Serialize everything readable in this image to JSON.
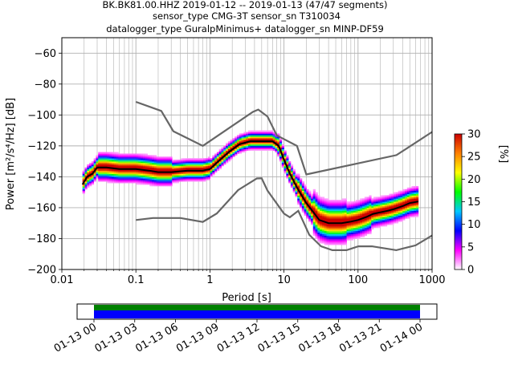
{
  "header": {
    "line1": "BK.BK81.00.HHZ   2019-01-12 -- 2019-01-13  (47/47 segments)",
    "line2": "sensor_type CMG-3T sensor_sn T310034",
    "line3": "datalogger_type GuralpMinimus+ datalogger_sn MINP-DF59"
  },
  "chart_data": [
    {
      "type": "heatmap",
      "xlabel": "Period [s]",
      "ylabel": "Power [m²/s⁴/Hz] [dB]",
      "xscale": "log",
      "xlim": [
        0.01,
        1000
      ],
      "ylim": [
        -200,
        -50
      ],
      "x_ticks": [
        0.01,
        0.1,
        1,
        10,
        100,
        1000
      ],
      "x_tick_labels": [
        "0.01",
        "0.1",
        "1",
        "10",
        "100",
        "1000"
      ],
      "y_ticks": [
        -200,
        -180,
        -160,
        -140,
        -120,
        -100,
        -80,
        -60
      ],
      "y_tick_labels": [
        "−200",
        "−180",
        "−160",
        "−140",
        "−120",
        "−100",
        "−80",
        "−60"
      ],
      "grid": true,
      "noise_models": [
        {
          "x": [
            0.1,
            0.22,
            0.32,
            0.8,
            3.8,
            4.5,
            6,
            8,
            15,
            20,
            330,
            1000
          ],
          "y": [
            -91.5,
            -97.4,
            -110.5,
            -120,
            -98,
            -96.5,
            -101,
            -113.2,
            -120,
            -138.5,
            -126,
            -111
          ]
        },
        {
          "x": [
            0.1,
            0.17,
            0.4,
            0.8,
            1.24,
            2.4,
            4.3,
            5,
            6,
            10,
            12,
            15.6,
            21.9,
            31.6,
            45,
            70,
            101,
            154,
            328,
            600,
            1000
          ],
          "y": [
            -168,
            -166.7,
            -166.7,
            -169.2,
            -163.7,
            -148.6,
            -141.1,
            -141,
            -149,
            -163.8,
            -166.2,
            -162,
            -177.5,
            -185,
            -187.5,
            -187.5,
            -185,
            -185,
            -187.5,
            -184.4,
            -178
          ]
        }
      ],
      "mode_curve": {
        "x": [
          0.019,
          0.022,
          0.026,
          0.03,
          0.04,
          0.06,
          0.1,
          0.15,
          0.2,
          0.3,
          0.5,
          0.8,
          1,
          1.3,
          1.8,
          2.5,
          3.5,
          5,
          7,
          8.5,
          10,
          12,
          15,
          20,
          25,
          30,
          40,
          60,
          80,
          100,
          130,
          160,
          200,
          250,
          300,
          400,
          500,
          650
        ],
        "y": [
          -145,
          -140,
          -138,
          -134,
          -134,
          -135,
          -135,
          -136,
          -137,
          -137,
          -136,
          -136,
          -135,
          -130,
          -124,
          -119,
          -117,
          -117,
          -117,
          -120,
          -129,
          -138,
          -147,
          -157,
          -163,
          -168,
          -170,
          -170,
          -169,
          -168,
          -166,
          -164,
          -163,
          -162,
          -161,
          -159,
          -157,
          -156
        ]
      },
      "colorbar": {
        "label": "[%]",
        "range": [
          0,
          30
        ],
        "ticks": [
          0,
          5,
          10,
          15,
          20,
          25,
          30
        ],
        "colormap": [
          "#ffffff",
          "#ff00ff",
          "#0000ff",
          "#00c8ff",
          "#00ff00",
          "#ffff00",
          "#ff8000",
          "#cc0000"
        ]
      }
    },
    {
      "type": "bar",
      "title": "",
      "x_tick_labels": [
        "01-13 00",
        "01-13 03",
        "01-13 06",
        "01-13 09",
        "01-13 12",
        "01-13 15",
        "01-13 18",
        "01-13 21",
        "01-14 00"
      ],
      "coverage": [
        {
          "color": "#008000",
          "start_hour": 0,
          "end_hour": 24
        },
        {
          "color": "#0000ff",
          "start_hour": 0,
          "end_hour": 24
        }
      ]
    }
  ]
}
